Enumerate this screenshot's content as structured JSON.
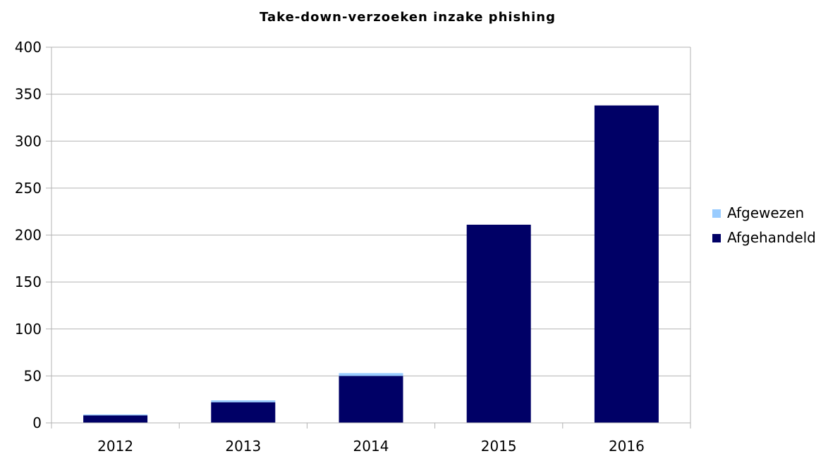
{
  "chart_data": {
    "type": "bar",
    "stacked": true,
    "title": "Take-down-verzoeken inzake phishing",
    "xlabel": "",
    "ylabel": "",
    "categories": [
      "2012",
      "2013",
      "2014",
      "2015",
      "2016"
    ],
    "series": [
      {
        "name": "Afgehandeld",
        "color": "#000066",
        "values": [
          8,
          22,
          50,
          211,
          338
        ]
      },
      {
        "name": "Afgewezen",
        "color": "#99ccff",
        "values": [
          1,
          2,
          3,
          0,
          0
        ]
      }
    ],
    "ylim": [
      0,
      400
    ],
    "yticks": [
      "0",
      "50",
      "100",
      "150",
      "200",
      "250",
      "300",
      "350",
      "400"
    ],
    "grid": true,
    "legend": "right",
    "legend_order": [
      "Afgewezen",
      "Afgehandeld"
    ]
  }
}
